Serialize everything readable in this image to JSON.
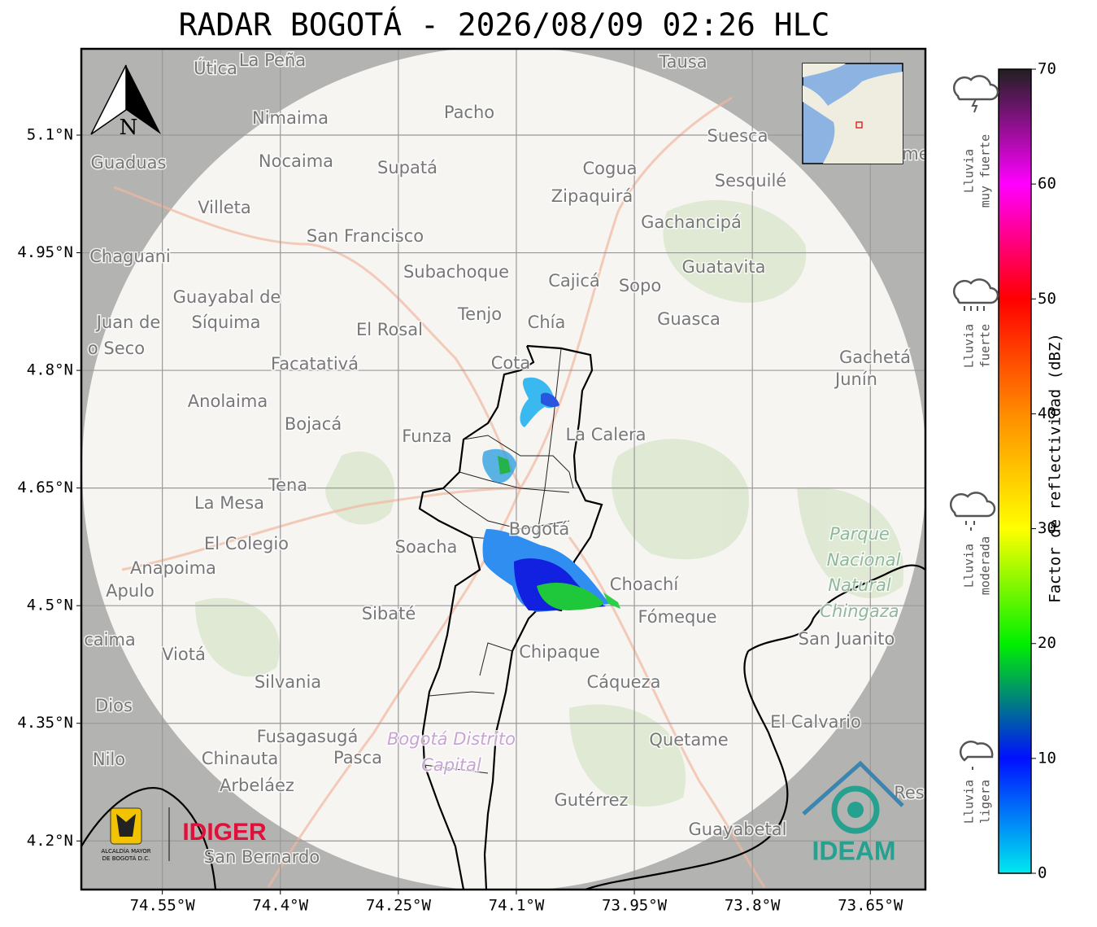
{
  "title": "RADAR BOGOTÁ - 2026/08/09 02:26 HLC",
  "map": {
    "xlim": [
      -74.653,
      -73.58
    ],
    "ylim": [
      4.138,
      5.21
    ],
    "xticks": [
      {
        "value": -74.55,
        "label": "74.55°W"
      },
      {
        "value": -74.4,
        "label": "74.4°W"
      },
      {
        "value": -74.25,
        "label": "74.25°W"
      },
      {
        "value": -74.1,
        "label": "74.1°W"
      },
      {
        "value": -73.95,
        "label": "73.95°W"
      },
      {
        "value": -73.8,
        "label": "73.8°W"
      },
      {
        "value": -73.65,
        "label": "73.65°W"
      }
    ],
    "yticks": [
      {
        "value": 5.1,
        "label": "5.1°N"
      },
      {
        "value": 4.95,
        "label": "4.95°N"
      },
      {
        "value": 4.8,
        "label": "4.8°N"
      },
      {
        "value": 4.65,
        "label": "4.65°N"
      },
      {
        "value": 4.5,
        "label": "4.5°N"
      },
      {
        "value": 4.35,
        "label": "4.35°N"
      },
      {
        "value": 4.2,
        "label": "4.2°N"
      }
    ],
    "grid": true,
    "north": "N",
    "places": [
      "Útica",
      "La Peña",
      "Tausa",
      "Pacho",
      "Nimaima",
      "Guaduas",
      "Nocaima",
      "Supatá",
      "Cogua",
      "Suesca",
      "Sesquilé",
      "me",
      "Villeta",
      "Zipaquirá",
      "Gachancipá",
      "San Francisco",
      "Chaguani",
      "Guatavita",
      "Subachoque",
      "Cajicá",
      "Sopo",
      "Guayabal de",
      "Síquima",
      "Juan de",
      "o Seco",
      "Tenjo",
      "Chía",
      "El Rosal",
      "Guasca",
      "Facatativá",
      "Gachetá",
      "Junín",
      "Cota",
      "Anolaima",
      "Bojacá",
      "Funza",
      "La Calera",
      "Tena",
      "La Mesa",
      "Bogotá",
      "Parque",
      "Nacional",
      "Natural",
      "Chingaza",
      "El Colegio",
      "Soacha",
      "Anapoima",
      "Apulo",
      "Choachí",
      "Sibaté",
      "Fómeque",
      "caima",
      "Viotá",
      "Chipaque",
      "San Juanito",
      "Silvania",
      "Cáqueza",
      "Dios",
      "El Calvario",
      "Fusagasugá",
      "Bogotá Distrito",
      "Capital",
      "Quetame",
      "Nilo",
      "Chinauta",
      "Pasca",
      "Arbeláez",
      "Gutérrez",
      "Res",
      "Guayabetal",
      "San Bernardo"
    ]
  },
  "logos": {
    "alcaldia": [
      "ALCALDÍA MAYOR",
      "DE BOGOTÁ D.C."
    ],
    "idiger": "IDIGER",
    "ideam": "IDEAM"
  },
  "colorbar": {
    "label": "Factor de reflectividad (dBZ)",
    "lim": [
      0,
      70
    ],
    "ticks": [
      0,
      10,
      20,
      30,
      40,
      50,
      60,
      70
    ],
    "colors": [
      "#00e8f0",
      "#0010ff",
      "#00f000",
      "#ffff00",
      "#ff8c00",
      "#ff0000",
      "#ff00ff",
      "#202020"
    ],
    "categories": [
      [
        "Lluvia",
        "muy fuerte"
      ],
      [
        "Lluvia",
        "fuerte"
      ],
      [
        "Lluvia",
        "moderada"
      ],
      [
        "Lluvia",
        "ligera"
      ]
    ]
  }
}
